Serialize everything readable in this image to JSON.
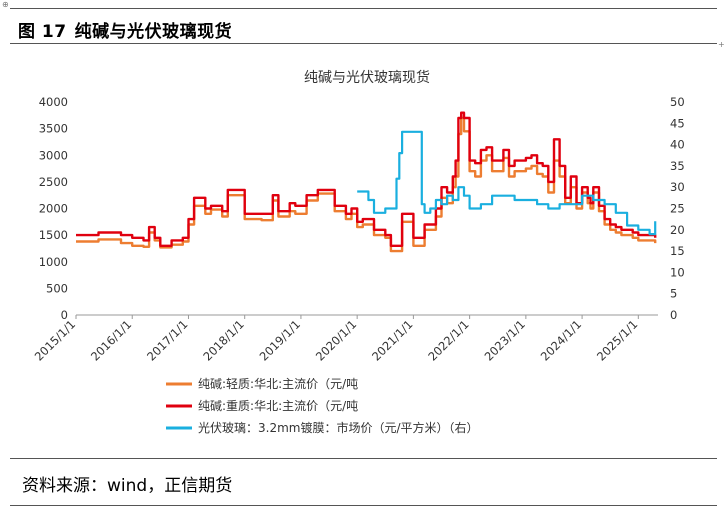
{
  "figure": {
    "number": "图 17",
    "title": "纯碱与光伏玻璃现货"
  },
  "source": "资料来源：wind，正信期货",
  "colors": {
    "light_soda": "#ED7D31",
    "heavy_soda": "#E0000F",
    "pv_glass": "#1AAFDF"
  },
  "chart_data": {
    "type": "line",
    "title": "纯碱与光伏玻璃现货",
    "x_tick_labels": [
      "2015/1/1",
      "2016/1/1",
      "2017/1/1",
      "2018/1/1",
      "2019/1/1",
      "2020/1/1",
      "2021/1/1",
      "2022/1/1",
      "2023/1/1",
      "2024/1/1",
      "2025/1/1"
    ],
    "x_range": [
      2015.0,
      2025.35
    ],
    "y_left": {
      "range": [
        0,
        4000
      ],
      "ticks": [
        "0",
        "500",
        "1000",
        "1500",
        "2000",
        "2500",
        "3000",
        "3500",
        "4000"
      ]
    },
    "y_right": {
      "range": [
        0,
        50
      ],
      "ticks": [
        "0",
        "5",
        "10",
        "15",
        "20",
        "25",
        "30",
        "35",
        "40",
        "45",
        "50"
      ]
    },
    "legend": {
      "light_soda": "纯碱:轻质:华北:主流价（元/吨",
      "heavy_soda": "纯碱:重质:华北:主流价（元/吨",
      "pv_glass": "光伏玻璃：3.2mm镀膜：市场价（元/平方米）（右）"
    },
    "series": [
      {
        "key": "light_soda",
        "name": "纯碱:轻质:华北:主流价（元/吨",
        "axis": "left",
        "x": [
          2015.0,
          2015.4,
          2015.8,
          2016.0,
          2016.2,
          2016.3,
          2016.4,
          2016.5,
          2016.7,
          2016.9,
          2017.0,
          2017.1,
          2017.3,
          2017.4,
          2017.6,
          2017.7,
          2017.9,
          2018.0,
          2018.3,
          2018.5,
          2018.6,
          2018.8,
          2018.9,
          2019.1,
          2019.3,
          2019.6,
          2019.8,
          2019.9,
          2020.0,
          2020.1,
          2020.3,
          2020.5,
          2020.6,
          2020.8,
          2021.0,
          2021.2,
          2021.4,
          2021.5,
          2021.6,
          2021.7,
          2021.75,
          2021.8,
          2021.85,
          2021.9,
          2022.0,
          2022.1,
          2022.2,
          2022.3,
          2022.4,
          2022.6,
          2022.7,
          2022.8,
          2023.0,
          2023.1,
          2023.2,
          2023.3,
          2023.4,
          2023.5,
          2023.6,
          2023.7,
          2023.8,
          2023.9,
          2024.0,
          2024.1,
          2024.15,
          2024.2,
          2024.3,
          2024.4,
          2024.5,
          2024.6,
          2024.7,
          2024.8,
          2024.9,
          2025.0,
          2025.2,
          2025.3
        ],
        "values": [
          1380,
          1420,
          1350,
          1300,
          1280,
          1550,
          1400,
          1270,
          1320,
          1380,
          1700,
          2050,
          1900,
          1980,
          1850,
          2250,
          2250,
          1800,
          1780,
          2150,
          1850,
          1950,
          1900,
          2150,
          2280,
          1950,
          1800,
          1900,
          1650,
          1700,
          1500,
          1450,
          1200,
          1750,
          1300,
          1600,
          1850,
          2200,
          2100,
          2400,
          2600,
          3400,
          3700,
          3450,
          2700,
          2600,
          2900,
          3000,
          2700,
          2950,
          2600,
          2700,
          2750,
          2800,
          2650,
          2600,
          2300,
          2900,
          2600,
          2100,
          2400,
          2000,
          2300,
          2100,
          2000,
          2300,
          1950,
          1700,
          1600,
          1550,
          1500,
          1500,
          1450,
          1400,
          1400,
          1350
        ]
      },
      {
        "key": "heavy_soda",
        "name": "纯碱:重质:华北:主流价（元/吨",
        "axis": "left",
        "x": [
          2015.0,
          2015.4,
          2015.8,
          2016.0,
          2016.2,
          2016.3,
          2016.4,
          2016.5,
          2016.7,
          2016.9,
          2017.0,
          2017.1,
          2017.3,
          2017.4,
          2017.6,
          2017.7,
          2017.9,
          2018.0,
          2018.3,
          2018.5,
          2018.6,
          2018.8,
          2018.9,
          2019.1,
          2019.3,
          2019.6,
          2019.8,
          2019.9,
          2020.0,
          2020.1,
          2020.3,
          2020.5,
          2020.6,
          2020.8,
          2021.0,
          2021.2,
          2021.4,
          2021.5,
          2021.6,
          2021.7,
          2021.75,
          2021.8,
          2021.85,
          2021.9,
          2022.0,
          2022.1,
          2022.2,
          2022.3,
          2022.4,
          2022.6,
          2022.7,
          2022.8,
          2023.0,
          2023.1,
          2023.2,
          2023.3,
          2023.4,
          2023.5,
          2023.6,
          2023.7,
          2023.8,
          2023.9,
          2024.0,
          2024.1,
          2024.15,
          2024.2,
          2024.3,
          2024.4,
          2024.5,
          2024.6,
          2024.7,
          2024.8,
          2024.9,
          2025.0,
          2025.2,
          2025.3
        ],
        "values": [
          1500,
          1550,
          1500,
          1450,
          1400,
          1650,
          1450,
          1300,
          1400,
          1450,
          1800,
          2200,
          2000,
          2050,
          1950,
          2350,
          2350,
          1900,
          1900,
          2250,
          1950,
          2100,
          2050,
          2250,
          2350,
          2050,
          1900,
          2000,
          1750,
          1800,
          1600,
          1500,
          1300,
          1900,
          1450,
          1700,
          2000,
          2400,
          2300,
          2600,
          2900,
          3700,
          3800,
          3700,
          2900,
          2850,
          3100,
          3150,
          2900,
          3100,
          2800,
          2900,
          2950,
          3000,
          2850,
          2800,
          2500,
          3300,
          2800,
          2200,
          2600,
          2100,
          2400,
          2200,
          2100,
          2400,
          2050,
          1800,
          1700,
          1650,
          1600,
          1600,
          1550,
          1500,
          1500,
          1450
        ]
      },
      {
        "key": "pv_glass",
        "name": "光伏玻璃：3.2mm镀膜：市场价（元/平方米）（右）",
        "axis": "right",
        "x": [
          2020.0,
          2020.1,
          2020.2,
          2020.3,
          2020.4,
          2020.5,
          2020.6,
          2020.7,
          2020.75,
          2020.8,
          2020.9,
          2021.0,
          2021.15,
          2021.2,
          2021.3,
          2021.4,
          2021.5,
          2021.6,
          2021.7,
          2021.8,
          2021.9,
          2022.0,
          2022.2,
          2022.4,
          2022.6,
          2022.8,
          2023.0,
          2023.2,
          2023.4,
          2023.6,
          2023.8,
          2024.0,
          2024.2,
          2024.4,
          2024.6,
          2024.8,
          2025.0,
          2025.2,
          2025.3
        ],
        "values": [
          29,
          29,
          27,
          24,
          24,
          25,
          25,
          32,
          38,
          43,
          43,
          43,
          26,
          24,
          25,
          27,
          26,
          28,
          27,
          30,
          28,
          25,
          26,
          28,
          28,
          27,
          27,
          26,
          25,
          26,
          26,
          28,
          27,
          26,
          24,
          21,
          20,
          19,
          22
        ]
      }
    ]
  }
}
